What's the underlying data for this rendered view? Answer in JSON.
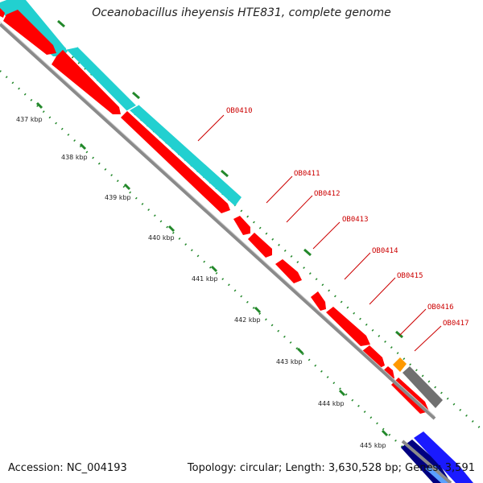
{
  "title": "Oceanobacillus iheyensis HTE831, complete genome",
  "footer": {
    "accession": "Accession: NC_004193",
    "summary": "Topology: circular; Length: 3,630,528 bp; Genes: 3,591"
  },
  "colors": {
    "cds": "#ff0000",
    "label": "#cc0000",
    "backbone": "#8a8a8a",
    "tick": "#22882a",
    "cyan": "#22d0d0",
    "orange": "#ff9900",
    "gray_feature": "#707070",
    "blue": "#1a1aff",
    "navy": "#000080",
    "light_blue": "#5aa0ff"
  },
  "kbp_ticks": [
    "437 kbp",
    "438 kbp",
    "439 kbp",
    "440 kbp",
    "441 kbp",
    "442 kbp",
    "443 kbp",
    "444 kbp",
    "445 kbp"
  ],
  "gene_labels": [
    "OB0410",
    "OB0411",
    "OB0412",
    "OB0413",
    "OB0414",
    "OB0415",
    "OB0416",
    "OB0417"
  ]
}
